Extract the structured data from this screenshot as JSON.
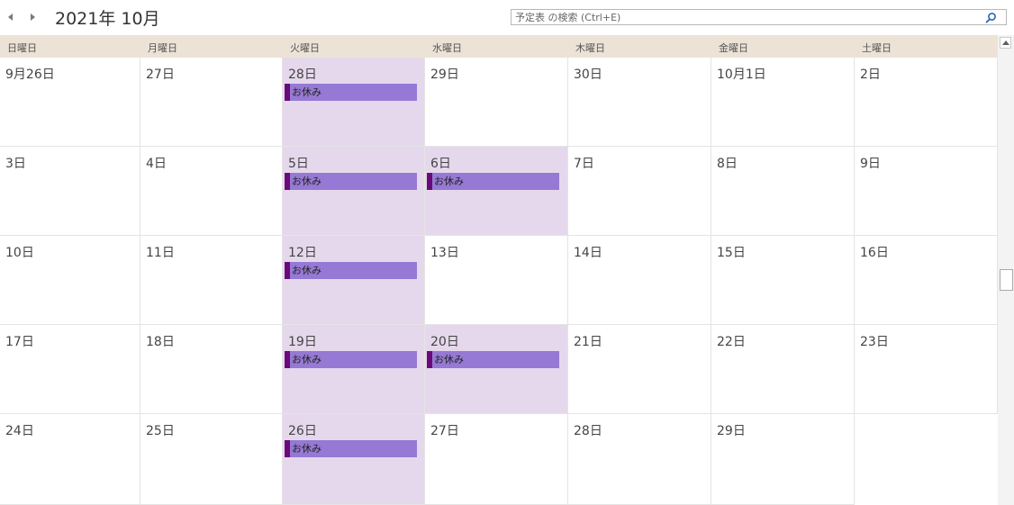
{
  "header": {
    "title": "2021年 10月",
    "prev_icon": "triangle-left-icon",
    "next_icon": "triangle-right-icon"
  },
  "search": {
    "placeholder": "予定表 の検索 (Ctrl+E)",
    "icon": "search-icon"
  },
  "weekdays": [
    "日曜日",
    "月曜日",
    "火曜日",
    "水曜日",
    "木曜日",
    "金曜日",
    "土曜日"
  ],
  "weeks": [
    {
      "days": [
        {
          "label": "9月26日"
        },
        {
          "label": "27日"
        },
        {
          "label": "28日",
          "highlight": true,
          "event": "お休み"
        },
        {
          "label": "29日"
        },
        {
          "label": "30日"
        },
        {
          "label": "10月1日"
        },
        {
          "label": "2日"
        }
      ]
    },
    {
      "days": [
        {
          "label": "3日"
        },
        {
          "label": "4日"
        },
        {
          "label": "5日",
          "highlight": true,
          "event": "お休み"
        },
        {
          "label": "6日",
          "highlight": true,
          "event": "お休み"
        },
        {
          "label": "7日"
        },
        {
          "label": "8日"
        },
        {
          "label": "9日"
        }
      ]
    },
    {
      "days": [
        {
          "label": "10日"
        },
        {
          "label": "11日"
        },
        {
          "label": "12日",
          "highlight": true,
          "event": "お休み"
        },
        {
          "label": "13日"
        },
        {
          "label": "14日"
        },
        {
          "label": "15日"
        },
        {
          "label": "16日"
        }
      ]
    },
    {
      "days": [
        {
          "label": "17日"
        },
        {
          "label": "18日"
        },
        {
          "label": "19日",
          "highlight": true,
          "event": "お休み"
        },
        {
          "label": "20日",
          "highlight": true,
          "event": "お休み"
        },
        {
          "label": "21日"
        },
        {
          "label": "22日"
        },
        {
          "label": "23日"
        }
      ]
    },
    {
      "days": [
        {
          "label": "24日"
        },
        {
          "label": "25日"
        },
        {
          "label": "26日",
          "highlight": true,
          "event": "お休み"
        },
        {
          "label": "27日"
        },
        {
          "label": "28日"
        },
        {
          "label": "29日"
        },
        {
          "label": "",
          "empty": true
        }
      ]
    }
  ],
  "colors": {
    "header_bg": "#ece3d6",
    "highlight_bg": "#e5d8ec",
    "event_bg": "#9679d4",
    "event_stripe": "#6a0a7a"
  }
}
